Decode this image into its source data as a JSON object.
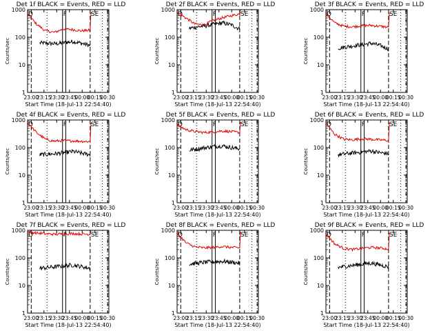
{
  "chart_data": [
    {
      "type": "line",
      "title": "Det 1f BLACK = Events, RED = LLD",
      "xlabel": "Start Time (18-Jul-13 22:54:40)",
      "ylabel": "Counts/sec",
      "yscale": "log",
      "ylim": [
        1,
        1000
      ],
      "x_ticks": [
        "23:00",
        "23:15",
        "23:30",
        "23:45",
        "00:00",
        "00:15",
        "00:30"
      ],
      "markers": [
        {
          "label": "D",
          "t": 0
        },
        {
          "label": "F",
          "t": 0.43
        },
        {
          "label": "SE",
          "t": 0.77
        }
      ],
      "series": [
        {
          "name": "Events",
          "color": "#000000",
          "start": 0.15,
          "end": 0.77,
          "profile": [
            62,
            60,
            58,
            64,
            70,
            60,
            50
          ]
        },
        {
          "name": "LLD",
          "color": "#e00000",
          "start": 0.0,
          "end": 0.77,
          "profile": [
            700,
            300,
            170,
            150,
            200,
            190,
            170,
            180
          ],
          "tail": 800
        }
      ]
    },
    {
      "type": "line",
      "title": "Det 2f BLACK = Events, RED = LLD",
      "xlabel": "Start Time (18-Jul-13 22:54:40)",
      "ylabel": "Counts/sec",
      "yscale": "log",
      "ylim": [
        1,
        1000
      ],
      "x_ticks": [
        "23:00",
        "23:15",
        "23:30",
        "23:45",
        "00:00",
        "00:15",
        "00:30"
      ],
      "markers": [
        {
          "label": "D",
          "t": 0
        },
        {
          "label": "F",
          "t": 0.43
        },
        {
          "label": "SE",
          "t": 0.77
        }
      ],
      "series": [
        {
          "name": "Events",
          "color": "#000000",
          "start": 0.15,
          "end": 0.77,
          "profile": [
            210,
            240,
            260,
            300,
            330,
            280,
            200
          ]
        },
        {
          "name": "LLD",
          "color": "#e00000",
          "start": 0.0,
          "end": 0.77,
          "profile": [
            800,
            500,
            300,
            280,
            400,
            500,
            600,
            700
          ],
          "tail": 1000
        }
      ]
    },
    {
      "type": "line",
      "title": "Det 3f BLACK = Events, RED = LLD",
      "xlabel": "Start Time (18-Jul-13 22:54:40)",
      "ylabel": "Counts/sec",
      "yscale": "log",
      "ylim": [
        1,
        1000
      ],
      "x_ticks": [
        "23:00",
        "23:15",
        "23:30",
        "23:45",
        "00:00",
        "00:15",
        "00:30"
      ],
      "markers": [
        {
          "label": "D",
          "t": 0
        },
        {
          "label": "F",
          "t": 0.43
        },
        {
          "label": "SE",
          "t": 0.77
        }
      ],
      "series": [
        {
          "name": "Events",
          "color": "#000000",
          "start": 0.15,
          "end": 0.77,
          "profile": [
            40,
            45,
            50,
            55,
            60,
            50,
            38
          ]
        },
        {
          "name": "LLD",
          "color": "#e00000",
          "start": 0.0,
          "end": 0.77,
          "profile": [
            700,
            330,
            250,
            240,
            260,
            270,
            250,
            230
          ],
          "tail": 750
        }
      ]
    },
    {
      "type": "line",
      "title": "Det 4f BLACK = Events, RED = LLD",
      "xlabel": "Start Time (18-Jul-13 22:54:40)",
      "ylabel": "Counts/sec",
      "yscale": "log",
      "ylim": [
        1,
        1000
      ],
      "x_ticks": [
        "23:00",
        "23:15",
        "23:30",
        "23:45",
        "00:00",
        "00:15",
        "00:30"
      ],
      "markers": [
        {
          "label": "D",
          "t": 0
        },
        {
          "label": "F",
          "t": 0.43
        },
        {
          "label": "SE",
          "t": 0.77
        }
      ],
      "series": [
        {
          "name": "Events",
          "color": "#000000",
          "start": 0.15,
          "end": 0.77,
          "profile": [
            55,
            58,
            60,
            66,
            72,
            62,
            55
          ]
        },
        {
          "name": "LLD",
          "color": "#e00000",
          "start": 0.0,
          "end": 0.77,
          "profile": [
            800,
            350,
            200,
            170,
            180,
            175,
            170,
            165
          ],
          "tail": 800
        }
      ]
    },
    {
      "type": "line",
      "title": "Det 5f BLACK = Events, RED = LLD",
      "xlabel": "Start Time (18-Jul-13 22:54:40)",
      "ylabel": "Counts/sec",
      "yscale": "log",
      "ylim": [
        1,
        1000
      ],
      "x_ticks": [
        "23:00",
        "23:15",
        "23:30",
        "23:45",
        "00:00",
        "00:15",
        "00:30"
      ],
      "markers": [
        {
          "label": "D",
          "t": 0
        },
        {
          "label": "F",
          "t": 0.43
        },
        {
          "label": "SE",
          "t": 0.77
        }
      ],
      "series": [
        {
          "name": "Events",
          "color": "#000000",
          "start": 0.15,
          "end": 0.77,
          "profile": [
            80,
            90,
            100,
            110,
            115,
            100,
            90
          ]
        },
        {
          "name": "LLD",
          "color": "#e00000",
          "start": 0.0,
          "end": 0.77,
          "profile": [
            650,
            450,
            380,
            350,
            370,
            400,
            380,
            350
          ],
          "tail": 850
        }
      ]
    },
    {
      "type": "line",
      "title": "Det 6f BLACK = Events, RED = LLD",
      "xlabel": "Start Time (18-Jul-13 22:54:40)",
      "ylabel": "Counts/sec",
      "yscale": "log",
      "ylim": [
        1,
        1000
      ],
      "x_ticks": [
        "23:00",
        "23:15",
        "23:30",
        "23:45",
        "00:00",
        "00:15",
        "00:30"
      ],
      "markers": [
        {
          "label": "D",
          "t": 0
        },
        {
          "label": "F",
          "t": 0.43
        },
        {
          "label": "SE",
          "t": 0.77
        }
      ],
      "series": [
        {
          "name": "Events",
          "color": "#000000",
          "start": 0.15,
          "end": 0.77,
          "profile": [
            55,
            60,
            65,
            70,
            75,
            65,
            60
          ]
        },
        {
          "name": "LLD",
          "color": "#e00000",
          "start": 0.0,
          "end": 0.77,
          "profile": [
            750,
            300,
            200,
            190,
            210,
            200,
            190,
            180
          ],
          "tail": 800
        }
      ]
    },
    {
      "type": "line",
      "title": "Det 7f BLACK = Events, RED = LLD",
      "xlabel": "Start Time (18-Jul-13 22:54:40)",
      "ylabel": "Counts/sec",
      "yscale": "log",
      "ylim": [
        1,
        1000
      ],
      "x_ticks": [
        "23:00",
        "23:15",
        "23:30",
        "23:45",
        "00:00",
        "00:15",
        "00:30"
      ],
      "markers": [
        {
          "label": "D",
          "t": 0
        },
        {
          "label": "F",
          "t": 0.43
        },
        {
          "label": "SE",
          "t": 0.77
        }
      ],
      "series": [
        {
          "name": "Events",
          "color": "#000000",
          "start": 0.15,
          "end": 0.77,
          "profile": [
            42,
            45,
            48,
            52,
            55,
            48,
            42
          ]
        },
        {
          "name": "LLD",
          "color": "#e00000",
          "start": 0.0,
          "end": 0.77,
          "profile": [
            900,
            800,
            750,
            720,
            740,
            760,
            740,
            720
          ],
          "tail": 950
        }
      ]
    },
    {
      "type": "line",
      "title": "Det 8f BLACK = Events, RED = LLD",
      "xlabel": "Start Time (18-Jul-13 22:54:40)",
      "ylabel": "Counts/sec",
      "yscale": "log",
      "ylim": [
        1,
        1000
      ],
      "x_ticks": [
        "23:00",
        "23:15",
        "23:30",
        "23:45",
        "00:00",
        "00:15",
        "00:30"
      ],
      "markers": [
        {
          "label": "D",
          "t": 0
        },
        {
          "label": "F",
          "t": 0.43
        },
        {
          "label": "SE",
          "t": 0.77
        }
      ],
      "series": [
        {
          "name": "Events",
          "color": "#000000",
          "start": 0.15,
          "end": 0.77,
          "profile": [
            60,
            65,
            70,
            72,
            75,
            70,
            65
          ]
        },
        {
          "name": "LLD",
          "color": "#e00000",
          "start": 0.0,
          "end": 0.77,
          "profile": [
            800,
            350,
            250,
            230,
            240,
            260,
            240,
            230
          ],
          "tail": 900
        }
      ]
    },
    {
      "type": "line",
      "title": "Det 9f BLACK = Events, RED = LLD",
      "xlabel": "Start Time (18-Jul-13 22:54:40)",
      "ylabel": "Counts/sec",
      "yscale": "log",
      "ylim": [
        1,
        1000
      ],
      "x_ticks": [
        "23:00",
        "23:15",
        "23:30",
        "23:45",
        "00:00",
        "00:15",
        "00:30"
      ],
      "markers": [
        {
          "label": "D",
          "t": 0
        },
        {
          "label": "F",
          "t": 0.43
        },
        {
          "label": "SE",
          "t": 0.77
        }
      ],
      "series": [
        {
          "name": "Events",
          "color": "#000000",
          "start": 0.15,
          "end": 0.77,
          "profile": [
            45,
            50,
            55,
            60,
            65,
            55,
            48
          ]
        },
        {
          "name": "LLD",
          "color": "#e00000",
          "start": 0.0,
          "end": 0.77,
          "profile": [
            750,
            320,
            220,
            200,
            220,
            240,
            230,
            210
          ],
          "tail": 800
        }
      ]
    }
  ]
}
